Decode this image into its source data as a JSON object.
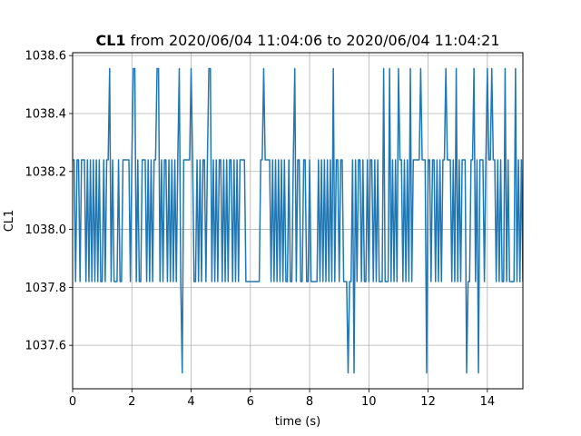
{
  "chart_data": {
    "type": "line",
    "title": {
      "channel": "CL1",
      "rest": " from 2020/06/04 11:04:06 to 2020/06/04 11:04:21"
    },
    "xlabel": "time (s)",
    "ylabel": "CL1",
    "xlim": [
      0,
      15.2
    ],
    "ylim": [
      1037.45,
      1038.61
    ],
    "xticks": [
      0,
      2,
      4,
      6,
      8,
      10,
      12,
      14
    ],
    "yticks": [
      1037.6,
      1037.8,
      1038.0,
      1038.2,
      1038.4,
      1038.6
    ],
    "xtick_labels": [
      "0",
      "2",
      "4",
      "6",
      "8",
      "10",
      "12",
      "14"
    ],
    "ytick_labels": [
      "1037.6",
      "1037.8",
      "1038.0",
      "1038.2",
      "1038.4",
      "1038.6"
    ],
    "grid": true,
    "levels": {
      "high": 1038.555,
      "mid": 1038.24,
      "low": 1037.82,
      "min": 1037.505
    },
    "series": [
      {
        "color": "#1f77b4",
        "spikes_high_at": [
          1.25,
          2.05,
          2.1,
          2.85,
          2.9,
          3.6,
          4.0,
          4.6,
          4.65,
          6.45,
          7.5,
          8.8,
          10.5,
          10.7,
          11.0,
          11.4,
          11.75,
          12.6,
          12.95,
          13.55,
          14.0,
          14.15,
          14.6,
          14.95
        ],
        "spikes_low_at": [
          3.7,
          9.3,
          9.5,
          11.95,
          13.3,
          13.7
        ],
        "flat_high_segments": [
          [
            1.7,
            1.9
          ],
          [
            3.85,
            4.05
          ],
          [
            6.4,
            6.65
          ],
          [
            11.5,
            12.05
          ],
          [
            12.5,
            12.75
          ],
          [
            14.05,
            14.25
          ]
        ],
        "flat_low_segments": [
          [
            5.85,
            6.2
          ],
          [
            8.05,
            8.25
          ],
          [
            14.75,
            15.0
          ]
        ]
      }
    ]
  }
}
